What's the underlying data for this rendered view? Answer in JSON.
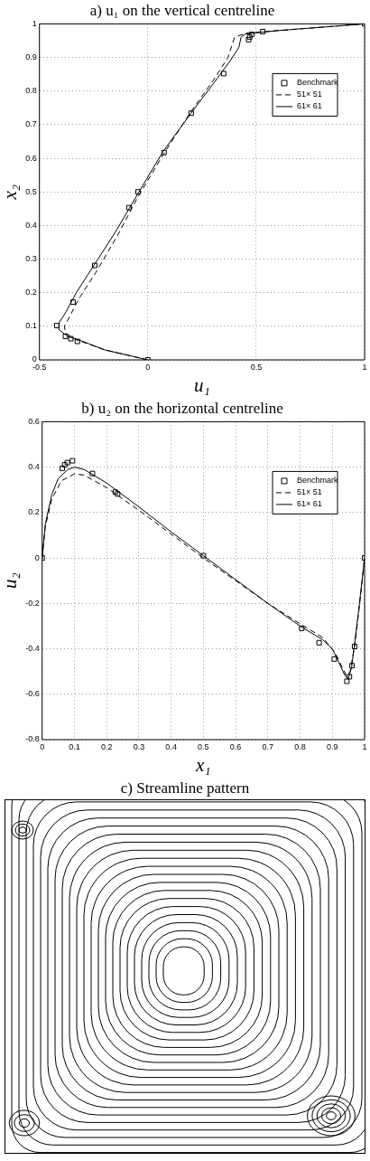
{
  "chart_data": [
    {
      "type": "line",
      "title": "a) u₁ on the vertical centreline",
      "xlabel": "u₁",
      "ylabel": "x₂",
      "xlim": [
        -0.5,
        1
      ],
      "xticks": [
        -0.5,
        0,
        0.5,
        1
      ],
      "ylim": [
        0,
        1
      ],
      "yticks": [
        0,
        0.1,
        0.2,
        0.3,
        0.4,
        0.5,
        0.6,
        0.7,
        0.8,
        0.9,
        1
      ],
      "grid": true,
      "legend": "top right",
      "series": [
        {
          "name": "Benchmark",
          "type": "scatter",
          "marker": "square",
          "color": "#000000",
          "x": [
            1,
            0.53,
            0.48,
            0.47,
            0.465,
            0.35,
            0.2,
            0.075,
            -0.045,
            -0.087,
            -0.245,
            -0.345,
            -0.42,
            -0.38,
            -0.355,
            -0.325,
            0
          ],
          "values": [
            1,
            0.977,
            0.969,
            0.961,
            0.953,
            0.852,
            0.734,
            0.617,
            0.5,
            0.453,
            0.281,
            0.172,
            0.102,
            0.07,
            0.063,
            0.055,
            0
          ]
        },
        {
          "name": "51× 51",
          "type": "line",
          "marker": "none",
          "line_style": "dashed",
          "color": "#000000",
          "x": [
            0,
            -0.2,
            -0.33,
            -0.38,
            -0.385,
            -0.36,
            -0.32,
            -0.24,
            -0.14,
            -0.05,
            0.07,
            0.2,
            0.3,
            0.37,
            0.4,
            0.45,
            0.6,
            1
          ],
          "values": [
            0,
            0.03,
            0.06,
            0.08,
            0.1,
            0.13,
            0.18,
            0.26,
            0.37,
            0.48,
            0.61,
            0.74,
            0.83,
            0.9,
            0.96,
            0.972,
            0.98,
            1
          ]
        },
        {
          "name": "61× 61",
          "type": "line",
          "marker": "none",
          "line_style": "solid",
          "color": "#000000",
          "x": [
            0,
            -0.1,
            -0.2,
            -0.3,
            -0.37,
            -0.41,
            -0.41,
            -0.38,
            -0.33,
            -0.25,
            -0.15,
            -0.05,
            0.07,
            0.2,
            0.3,
            0.38,
            0.42,
            0.43,
            0.45,
            0.6,
            0.8,
            1
          ],
          "values": [
            0,
            0.015,
            0.03,
            0.055,
            0.07,
            0.09,
            0.11,
            0.14,
            0.2,
            0.28,
            0.38,
            0.49,
            0.62,
            0.735,
            0.82,
            0.89,
            0.93,
            0.96,
            0.97,
            0.98,
            0.99,
            1
          ]
        }
      ]
    },
    {
      "type": "line",
      "title": "b) u₂ on the horizontal centreline",
      "xlabel": "x₁",
      "ylabel": "u₂",
      "xlim": [
        0,
        1
      ],
      "xticks": [
        0,
        0.1,
        0.2,
        0.3,
        0.4,
        0.5,
        0.6,
        0.7,
        0.8,
        0.9,
        1
      ],
      "ylim": [
        -0.8,
        0.6
      ],
      "yticks": [
        -0.8,
        -0.6,
        -0.4,
        -0.2,
        0,
        0.2,
        0.4,
        0.6
      ],
      "grid": true,
      "legend": "top right",
      "series": [
        {
          "name": "Benchmark",
          "type": "scatter",
          "marker": "square",
          "color": "#000000",
          "x": [
            0,
            0.0625,
            0.07,
            0.078,
            0.094,
            0.156,
            0.227,
            0.234,
            0.5,
            0.805,
            0.859,
            0.906,
            0.945,
            0.953,
            0.961,
            0.969,
            1
          ],
          "values": [
            0,
            0.395,
            0.41,
            0.42,
            0.428,
            0.372,
            0.29,
            0.282,
            0.01,
            -0.31,
            -0.373,
            -0.445,
            -0.543,
            -0.523,
            -0.474,
            -0.39,
            0
          ]
        },
        {
          "name": "51× 51",
          "type": "line",
          "marker": "none",
          "line_style": "dashed",
          "color": "#000000",
          "x": [
            0,
            0.01,
            0.03,
            0.06,
            0.1,
            0.13,
            0.2,
            0.3,
            0.4,
            0.5,
            0.6,
            0.7,
            0.8,
            0.87,
            0.91,
            0.93,
            0.945,
            0.955,
            0.97,
            0.985,
            1
          ],
          "values": [
            0,
            0.14,
            0.26,
            0.34,
            0.37,
            0.365,
            0.31,
            0.21,
            0.105,
            0,
            -0.1,
            -0.2,
            -0.29,
            -0.35,
            -0.42,
            -0.48,
            -0.52,
            -0.5,
            -0.38,
            -0.2,
            0
          ]
        },
        {
          "name": "61× 61",
          "type": "line",
          "marker": "none",
          "line_style": "solid",
          "color": "#000000",
          "x": [
            0,
            0.01,
            0.03,
            0.05,
            0.08,
            0.1,
            0.13,
            0.2,
            0.3,
            0.4,
            0.5,
            0.6,
            0.7,
            0.8,
            0.87,
            0.9,
            0.92,
            0.94,
            0.95,
            0.96,
            0.98,
            1
          ],
          "values": [
            0,
            0.15,
            0.28,
            0.35,
            0.39,
            0.4,
            0.39,
            0.33,
            0.225,
            0.115,
            0.01,
            -0.095,
            -0.2,
            -0.3,
            -0.36,
            -0.4,
            -0.46,
            -0.52,
            -0.53,
            -0.48,
            -0.25,
            0
          ]
        }
      ]
    },
    {
      "type": "other",
      "title": "c) Streamline pattern"
    }
  ]
}
